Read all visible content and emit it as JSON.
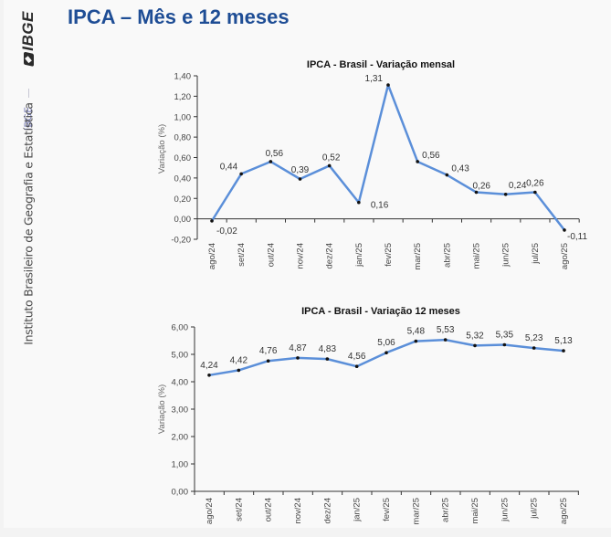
{
  "page": {
    "title": "IPCA – Mês e 12 meses",
    "accent_color": "#1e4d95",
    "line_color": "#5b8fd9"
  },
  "sidebar": {
    "logo": "IBGE",
    "tag": "IBGE",
    "institution": "Instituto Brasileiro de Geografia e Estatística"
  },
  "chart_data": [
    {
      "type": "line",
      "title": "IPCA - Brasil - Variação mensal",
      "xlabel": "",
      "ylabel": "Variação (%)",
      "ylim": [
        -0.2,
        1.4
      ],
      "yticks": [
        -0.2,
        0.0,
        0.2,
        0.4,
        0.6,
        0.8,
        1.0,
        1.2,
        1.4
      ],
      "ytick_labels": [
        "-0,20",
        "0,00",
        "0,20",
        "0,40",
        "0,60",
        "0,80",
        "1,00",
        "1,20",
        "1,40"
      ],
      "grid": false,
      "categories": [
        "ago/24",
        "set/24",
        "out/24",
        "nov/24",
        "dez/24",
        "jan/25",
        "fev/25",
        "mar/25",
        "abr/25",
        "mai/25",
        "jun/25",
        "jul/25",
        "ago/25"
      ],
      "series": [
        {
          "name": "Variação mensal",
          "values": [
            -0.02,
            0.44,
            0.56,
            0.39,
            0.52,
            0.16,
            1.31,
            0.56,
            0.43,
            0.26,
            0.24,
            0.26,
            -0.11
          ],
          "labels": [
            "-0,02",
            "0,44",
            "0,56",
            "0,39",
            "0,52",
            "0,16",
            "1,31",
            "0,56",
            "0,43",
            "0,26",
            "0,24",
            "0,26",
            "-0,11"
          ]
        }
      ]
    },
    {
      "type": "line",
      "title": "IPCA - Brasil - Variação 12 meses",
      "xlabel": "",
      "ylabel": "Variação (%)",
      "ylim": [
        0.0,
        6.0
      ],
      "yticks": [
        0,
        1,
        2,
        3,
        4,
        5,
        6
      ],
      "ytick_labels": [
        "0,00",
        "1,00",
        "2,00",
        "3,00",
        "4,00",
        "5,00",
        "6,00"
      ],
      "grid": false,
      "categories": [
        "ago/24",
        "set/24",
        "out/24",
        "nov/24",
        "dez/24",
        "jan/25",
        "fev/25",
        "mar/25",
        "abr/25",
        "mai/25",
        "jun/25",
        "jul/25",
        "ago/25"
      ],
      "series": [
        {
          "name": "Variação 12 meses",
          "values": [
            4.24,
            4.42,
            4.76,
            4.87,
            4.83,
            4.56,
            5.06,
            5.48,
            5.53,
            5.32,
            5.35,
            5.23,
            5.13
          ],
          "labels": [
            "4,24",
            "4,42",
            "4,76",
            "4,87",
            "4,83",
            "4,56",
            "5,06",
            "5,48",
            "5,53",
            "5,32",
            "5,35",
            "5,23",
            "5,13"
          ]
        }
      ]
    }
  ]
}
